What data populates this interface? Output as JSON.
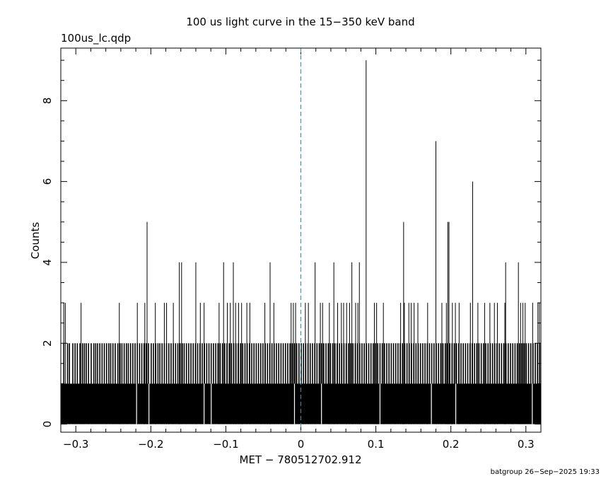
{
  "chart_data": {
    "type": "bar",
    "title": "100 us light curve in the 15−350 keV band",
    "file_label": "100us_lc.qdp",
    "xlabel": "MET − 780512702.912",
    "ylabel": "Counts",
    "footer": "batgroup 26−Sep−2025 19:33",
    "xlim": [
      -0.32,
      0.32
    ],
    "ylim": [
      -0.2,
      9.3
    ],
    "x_ticks": [
      -0.3,
      -0.2,
      -0.1,
      0,
      0.1,
      0.2,
      0.3
    ],
    "x_tick_labels": [
      "−0.3",
      "−0.2",
      "−0.1",
      "0",
      "0.1",
      "0.2",
      "0.3"
    ],
    "y_ticks": [
      0,
      2,
      4,
      6,
      8
    ],
    "y_tick_labels": [
      "0",
      "2",
      "4",
      "6",
      "8"
    ],
    "trigger_line_x": 0,
    "bin_width": 0.0001,
    "baseline_counts": 1,
    "zero_count_bins": [
      -0.219,
      -0.2025,
      -0.129,
      -0.1195,
      -0.0085,
      0.0275,
      0.1055,
      0.174,
      0.2065,
      0.3085
    ],
    "two_count_bins": [
      -0.316,
      -0.311,
      -0.3085,
      -0.304,
      -0.301,
      -0.298,
      -0.2945,
      -0.291,
      -0.2885,
      -0.286,
      -0.283,
      -0.2795,
      -0.276,
      -0.2735,
      -0.271,
      -0.268,
      -0.265,
      -0.262,
      -0.259,
      -0.256,
      -0.2535,
      -0.2505,
      -0.2475,
      -0.244,
      -0.241,
      -0.2385,
      -0.2355,
      -0.2325,
      -0.23,
      -0.227,
      -0.224,
      -0.221,
      -0.218,
      -0.215,
      -0.212,
      -0.209,
      -0.206,
      -0.203,
      -0.1995,
      -0.1965,
      -0.1935,
      -0.1905,
      -0.188,
      -0.185,
      -0.182,
      -0.179,
      -0.176,
      -0.173,
      -0.17,
      -0.167,
      -0.164,
      -0.161,
      -0.158,
      -0.1555,
      -0.1525,
      -0.1495,
      -0.1465,
      -0.1435,
      -0.1405,
      -0.1375,
      -0.1345,
      -0.1315,
      -0.1285,
      -0.1255,
      -0.1225,
      -0.1195,
      -0.1165,
      -0.1135,
      -0.1105,
      -0.1075,
      -0.1045,
      -0.1015,
      -0.0985,
      -0.0955,
      -0.0925,
      -0.0895,
      -0.0865,
      -0.0835,
      -0.0805,
      -0.0775,
      -0.0745,
      -0.0715,
      -0.0685,
      -0.0655,
      -0.0625,
      -0.0595,
      -0.0565,
      -0.0535,
      -0.0505,
      -0.0475,
      -0.0445,
      -0.0415,
      -0.0385,
      -0.0355,
      -0.0325,
      -0.0295,
      -0.0265,
      -0.0235,
      -0.0205,
      -0.0175,
      -0.0145,
      -0.0115,
      -0.0085,
      -0.0055,
      -0.0025,
      0.0005,
      0.0035,
      0.0065,
      0.0095,
      0.0125,
      0.0155,
      0.0185,
      0.0215,
      0.0245,
      0.0275,
      0.0305,
      0.0335,
      0.0365,
      0.0395,
      0.0425,
      0.0455,
      0.0485,
      0.0515,
      0.0545,
      0.0575,
      0.0605,
      0.0635,
      0.0665,
      0.0695,
      0.0725,
      0.0755,
      0.0785,
      0.0815,
      0.0845,
      0.0875,
      0.0905,
      0.0935,
      0.0965,
      0.0995,
      0.1025,
      0.1055,
      0.1085,
      0.1115,
      0.1145,
      0.1175,
      0.1205,
      0.1235,
      0.1265,
      0.1295,
      0.1325,
      0.1355,
      0.1385,
      0.1415,
      0.1445,
      0.1475,
      0.1505,
      0.1535,
      0.1565,
      0.1595,
      0.1625,
      0.1655,
      0.1685,
      0.1715,
      0.1745,
      0.1775,
      0.1805,
      0.1835,
      0.1865,
      0.1895,
      0.1925,
      0.1955,
      0.1985,
      0.2015,
      0.2045,
      0.2075,
      0.2105,
      0.2135,
      0.2165,
      0.2195,
      0.2225,
      0.2255,
      0.2285,
      0.2315,
      0.2345,
      0.2375,
      0.2405,
      0.2435,
      0.2465,
      0.2495,
      0.2525,
      0.2555,
      0.2585,
      0.2615,
      0.2645,
      0.2675,
      0.2705,
      0.2735,
      0.2765,
      0.2795,
      0.2825,
      0.2855,
      0.2885,
      0.2915,
      0.2945,
      0.2975,
      0.3005,
      0.3035,
      0.3065,
      0.3095,
      0.3125,
      0.3155,
      0.3185
    ],
    "three_count_bins": [
      -0.316,
      -0.314,
      -0.293,
      -0.242,
      -0.218,
      -0.208,
      -0.194,
      -0.182,
      -0.179,
      -0.17,
      -0.134,
      -0.129,
      -0.109,
      -0.098,
      -0.094,
      -0.087,
      -0.083,
      -0.079,
      -0.072,
      -0.068,
      -0.048,
      -0.041,
      -0.036,
      -0.013,
      -0.01,
      -0.007,
      0.006,
      0.01,
      0.026,
      0.029,
      0.038,
      0.049,
      0.054,
      0.057,
      0.061,
      0.065,
      0.073,
      0.076,
      0.098,
      0.101,
      0.11,
      0.133,
      0.138,
      0.144,
      0.147,
      0.151,
      0.156,
      0.169,
      0.188,
      0.194,
      0.202,
      0.206,
      0.211,
      0.226,
      0.236,
      0.245,
      0.252,
      0.258,
      0.262,
      0.272,
      0.293,
      0.296,
      0.299,
      0.309,
      0.316,
      0.318
    ],
    "peaks": [
      {
        "x": -0.205,
        "y": 5
      },
      {
        "x": -0.162,
        "y": 4
      },
      {
        "x": -0.159,
        "y": 4
      },
      {
        "x": -0.14,
        "y": 4
      },
      {
        "x": -0.103,
        "y": 4
      },
      {
        "x": -0.09,
        "y": 4
      },
      {
        "x": -0.041,
        "y": 4
      },
      {
        "x": 0.019,
        "y": 4
      },
      {
        "x": 0.044,
        "y": 4
      },
      {
        "x": 0.068,
        "y": 4
      },
      {
        "x": 0.078,
        "y": 4
      },
      {
        "x": 0.087,
        "y": 9
      },
      {
        "x": 0.137,
        "y": 5
      },
      {
        "x": 0.18,
        "y": 7
      },
      {
        "x": 0.196,
        "y": 5
      },
      {
        "x": 0.1975,
        "y": 5
      },
      {
        "x": 0.229,
        "y": 6
      },
      {
        "x": 0.273,
        "y": 4
      },
      {
        "x": 0.29,
        "y": 4
      }
    ]
  }
}
